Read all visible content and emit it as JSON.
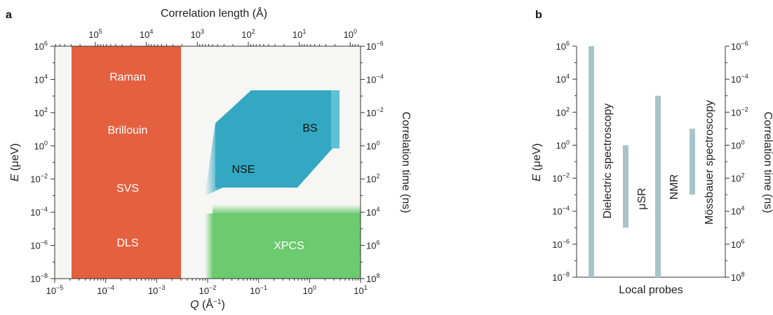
{
  "panel_a": {
    "letter": "a",
    "top_axis_title": "Correlation length (Å)",
    "left_axis_title_italic": "E",
    "left_axis_title_rest": " (μeV)",
    "right_axis_title": "Correlation time (ns)",
    "bottom_axis_title_italic": "Q",
    "bottom_axis_title_rest": " (Å",
    "bottom_axis_title_exp": "−1",
    "bottom_axis_title_end": ")",
    "bottom_ticks": [
      {
        "base": "10",
        "exp": "−5"
      },
      {
        "base": "10",
        "exp": "−4"
      },
      {
        "base": "10",
        "exp": "−3"
      },
      {
        "base": "10",
        "exp": "−2"
      },
      {
        "base": "10",
        "exp": "−1"
      },
      {
        "base": "10",
        "exp": "0"
      },
      {
        "base": "10",
        "exp": "1"
      }
    ],
    "top_ticks": [
      {
        "base": "10",
        "exp": "5"
      },
      {
        "base": "10",
        "exp": "4"
      },
      {
        "base": "10",
        "exp": "3"
      },
      {
        "base": "10",
        "exp": "2"
      },
      {
        "base": "10",
        "exp": "1"
      },
      {
        "base": "10",
        "exp": "0"
      }
    ],
    "left_ticks": [
      {
        "base": "10",
        "exp": "6"
      },
      {
        "base": "10",
        "exp": "4"
      },
      {
        "base": "10",
        "exp": "2"
      },
      {
        "base": "10",
        "exp": "0"
      },
      {
        "base": "10",
        "exp": "−2"
      },
      {
        "base": "10",
        "exp": "−4"
      },
      {
        "base": "10",
        "exp": "−6"
      },
      {
        "base": "10",
        "exp": "−8"
      }
    ],
    "right_ticks": [
      {
        "base": "10",
        "exp": "−6"
      },
      {
        "base": "10",
        "exp": "−4"
      },
      {
        "base": "10",
        "exp": "−2"
      },
      {
        "base": "10",
        "exp": "0"
      },
      {
        "base": "10",
        "exp": "2"
      },
      {
        "base": "10",
        "exp": "4"
      },
      {
        "base": "10",
        "exp": "6"
      },
      {
        "base": "10",
        "exp": "8"
      }
    ],
    "regions": {
      "raman": "Raman",
      "brillouin": "Brillouin",
      "svs": "SVS",
      "dls": "DLS",
      "bs": "BS",
      "nse": "NSE",
      "xpcs": "XPCS"
    },
    "colors": {
      "light_scattering": "#e4603f",
      "neutron": "#34a8c2",
      "xray": "#6bcb6e",
      "background": "#f6f6f4"
    }
  },
  "panel_b": {
    "letter": "b",
    "left_axis_title_italic": "E",
    "left_axis_title_rest": " (μeV)",
    "right_axis_title": "Correlation time (ns)",
    "bottom_title": "Local probes",
    "left_ticks": [
      {
        "base": "10",
        "exp": "6"
      },
      {
        "base": "10",
        "exp": "4"
      },
      {
        "base": "10",
        "exp": "2"
      },
      {
        "base": "10",
        "exp": "0"
      },
      {
        "base": "10",
        "exp": "−2"
      },
      {
        "base": "10",
        "exp": "−4"
      },
      {
        "base": "10",
        "exp": "−6"
      },
      {
        "base": "10",
        "exp": "−8"
      }
    ],
    "right_ticks": [
      {
        "base": "10",
        "exp": "−6"
      },
      {
        "base": "10",
        "exp": "−4"
      },
      {
        "base": "10",
        "exp": "−2"
      },
      {
        "base": "10",
        "exp": "0"
      },
      {
        "base": "10",
        "exp": "2"
      },
      {
        "base": "10",
        "exp": "4"
      },
      {
        "base": "10",
        "exp": "6"
      },
      {
        "base": "10",
        "exp": "8"
      }
    ],
    "probes": [
      {
        "label": "Dielectric spectroscopy",
        "log_e_min": -8,
        "log_e_max": 6
      },
      {
        "label": "μSR",
        "log_e_min": -5,
        "log_e_max": 0
      },
      {
        "label": "NMR",
        "log_e_min": -8,
        "log_e_max": 3
      },
      {
        "label": "Mössbauer spectroscopy",
        "log_e_min": -3,
        "log_e_max": 1
      }
    ],
    "bar_color": "#a7c5c8"
  }
}
